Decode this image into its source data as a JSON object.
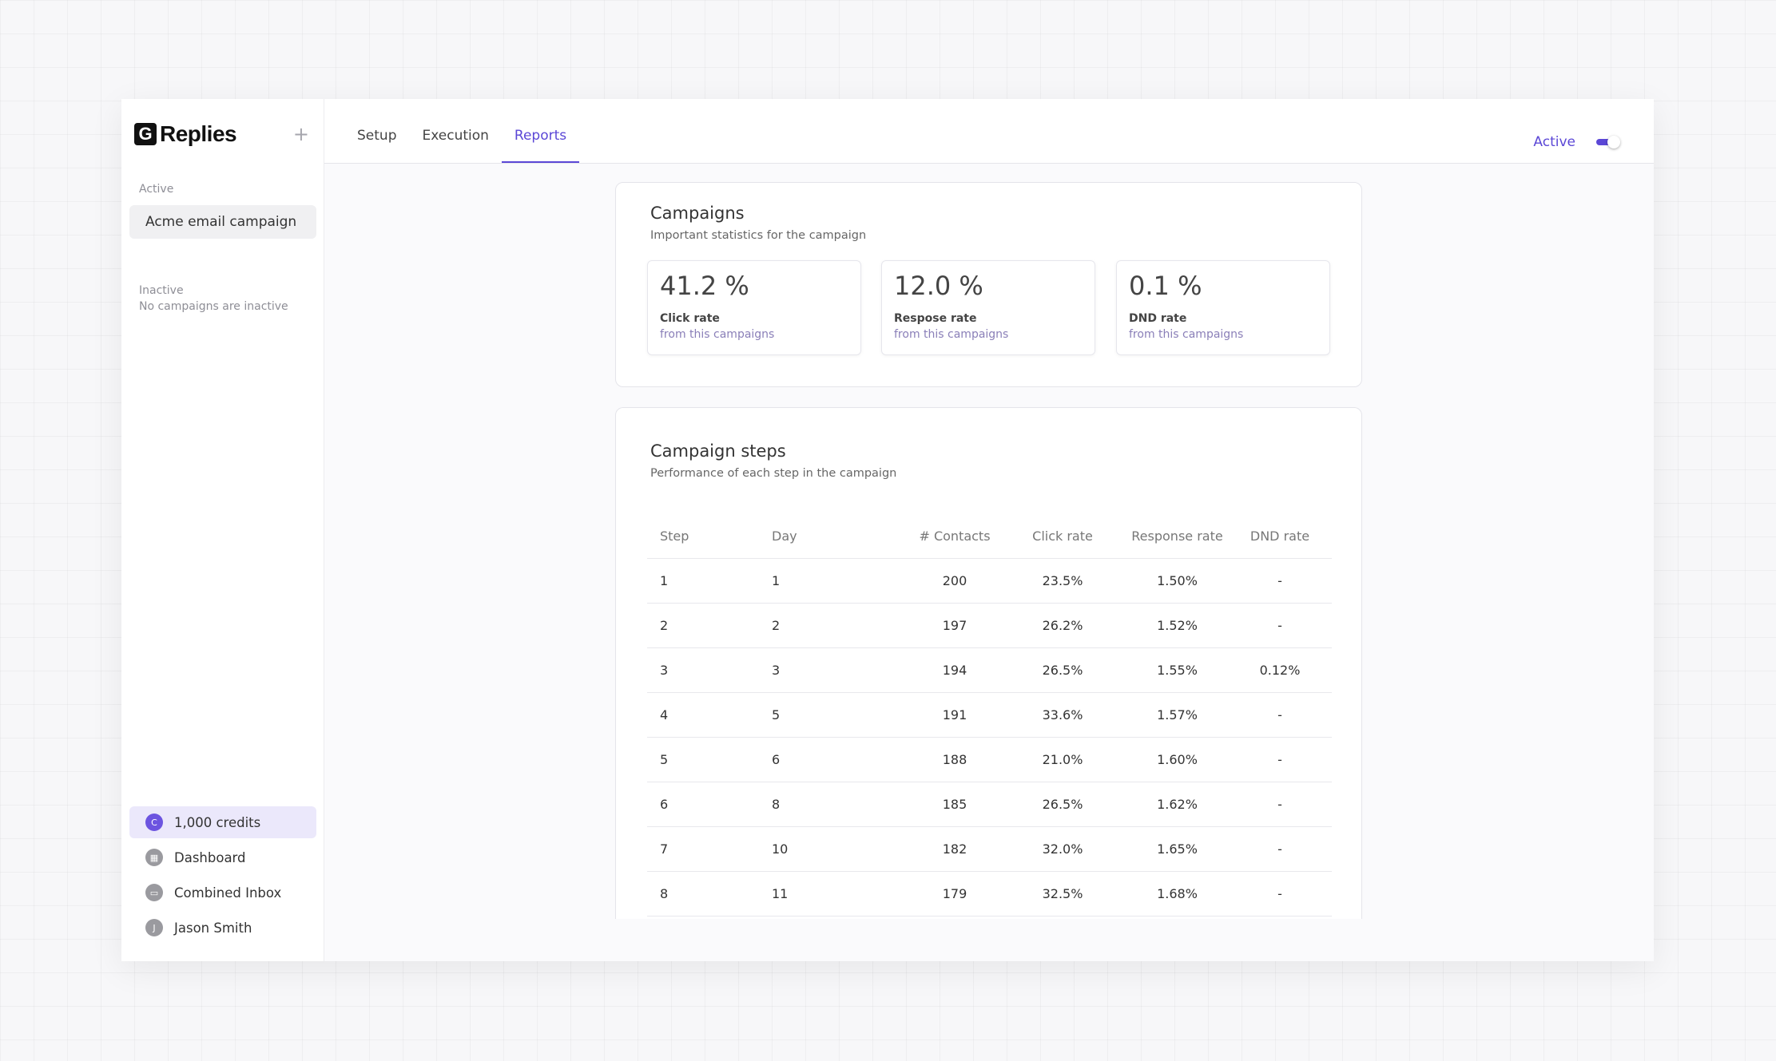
{
  "sidebar": {
    "logo_mark": "G",
    "logo_text": "Replies",
    "add_icon": "+",
    "active_label": "Active",
    "active_campaign": "Acme email campaign",
    "inactive_label": "Inactive",
    "inactive_note": "No campaigns are inactive",
    "bottom_items": [
      {
        "label": "1,000 credits",
        "icon_text": "C",
        "icon": "credits-icon"
      },
      {
        "label": "Dashboard",
        "icon_text": "▦",
        "icon": "dashboard-icon"
      },
      {
        "label": "Combined Inbox",
        "icon_text": "▭",
        "icon": "inbox-icon"
      },
      {
        "label": "Jason Smith",
        "icon_text": "J",
        "icon": "avatar-icon"
      }
    ]
  },
  "header": {
    "tabs": [
      {
        "label": "Setup"
      },
      {
        "label": "Execution"
      },
      {
        "label": "Reports"
      }
    ],
    "active_tab": "Reports",
    "status_label": "Active",
    "toggle_on": true
  },
  "campaigns_card": {
    "title": "Campaigns",
    "subtitle": "Important statistics for the campaign",
    "stats": [
      {
        "value": "41.2 %",
        "name": "Click rate",
        "note": "from this campaigns"
      },
      {
        "value": "12.0 %",
        "name": "Respose rate",
        "note": "from this campaigns"
      },
      {
        "value": "0.1 %",
        "name": "DND rate",
        "note": "from this campaigns"
      }
    ]
  },
  "steps_card": {
    "title": "Campaign steps",
    "subtitle": "Performance of each step in the campaign",
    "columns": [
      "Step",
      "Day",
      "# Contacts",
      "Click rate",
      "Response rate",
      "DND rate"
    ],
    "rows": [
      [
        "1",
        "1",
        "200",
        "23.5%",
        "1.50%",
        "-"
      ],
      [
        "2",
        "2",
        "197",
        "26.2%",
        "1.52%",
        "-"
      ],
      [
        "3",
        "3",
        "194",
        "26.5%",
        "1.55%",
        "0.12%"
      ],
      [
        "4",
        "5",
        "191",
        "33.6%",
        "1.57%",
        "-"
      ],
      [
        "5",
        "6",
        "188",
        "21.0%",
        "1.60%",
        "-"
      ],
      [
        "6",
        "8",
        "185",
        "26.5%",
        "1.62%",
        "-"
      ],
      [
        "7",
        "10",
        "182",
        "32.0%",
        "1.65%",
        "-"
      ],
      [
        "8",
        "11",
        "179",
        "32.5%",
        "1.68%",
        "-"
      ]
    ]
  },
  "colors": {
    "accent": "#5b47d6",
    "credits_bg": "#ebe8fb"
  }
}
